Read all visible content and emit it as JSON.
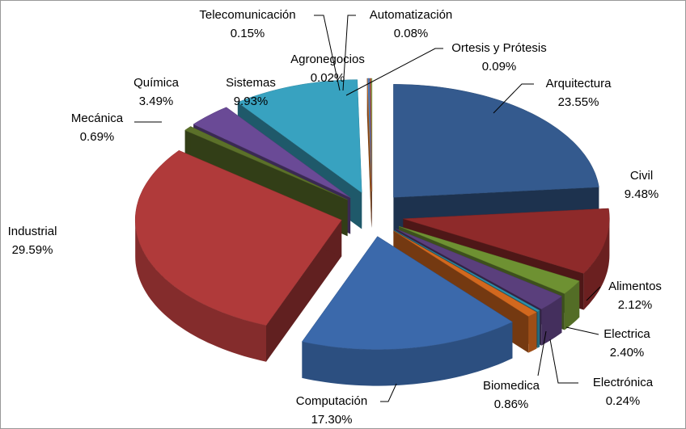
{
  "chart_data": {
    "type": "pie",
    "categories": [
      "Arquitectura",
      "Civil",
      "Alimentos",
      "Electrica",
      "Electrónica",
      "Biomedica",
      "Computación",
      "Industrial",
      "Mecánica",
      "Química",
      "Sistemas",
      "Agronegocios",
      "Telecomunicación",
      "Automatización",
      "Ortesis y Prótesis"
    ],
    "values": [
      23.55,
      9.48,
      2.12,
      2.4,
      0.24,
      0.86,
      17.3,
      29.59,
      0.69,
      3.49,
      9.93,
      0.02,
      0.15,
      0.08,
      0.09
    ],
    "value_labels": [
      "23.55%",
      "9.48%",
      "2.12%",
      "2.40%",
      "0.24%",
      "0.86%",
      "17.30%",
      "29.59%",
      "0.69%",
      "3.49%",
      "9.93%",
      "0.02%",
      "0.15%",
      "0.08%",
      "0.09%"
    ],
    "colors": [
      "#345a8e",
      "#8e2a2a",
      "#6e9132",
      "#5a3f7c",
      "#2e8fa9",
      "#d2681e",
      "#3b69ab",
      "#b03a3a",
      "#5b7029",
      "#6a4a96",
      "#38a2c0",
      "#e07a2a",
      "#4a7fc0",
      "#c04545",
      "#8aa64a"
    ]
  }
}
